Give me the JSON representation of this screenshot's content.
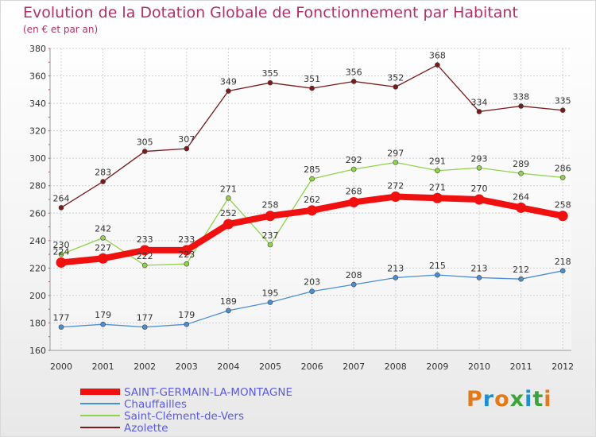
{
  "header": {
    "title": "Evolution de la Dotation Globale de Fonctionnement par Habitant",
    "subtitle": "(en € et par an)"
  },
  "logo": {
    "text": "Proxiti",
    "colors": [
      "#e07a1a",
      "#1f8fd0",
      "#e07a1a",
      "#3aa53a",
      "#1f8fd0",
      "#3aa53a",
      "#e07a1a"
    ]
  },
  "chart_data": {
    "type": "line",
    "x": [
      "2000",
      "2001",
      "2002",
      "2003",
      "2004",
      "2005",
      "2006",
      "2007",
      "2008",
      "2009",
      "2010",
      "2011",
      "2012"
    ],
    "ylim": [
      160,
      380
    ],
    "yticks": [
      160,
      180,
      200,
      220,
      240,
      260,
      280,
      300,
      320,
      340,
      360,
      380
    ],
    "grid": true,
    "legend_position": "bottom-left",
    "series": [
      {
        "name": "SAINT-GERMAIN-LA-MONTAGNE",
        "color": "#f01010",
        "highlight": true,
        "values": [
          224,
          227,
          233,
          233,
          252,
          258,
          262,
          268,
          272,
          271,
          270,
          264,
          258
        ]
      },
      {
        "name": "Chauffailles",
        "color": "#4a8ed4",
        "highlight": false,
        "values": [
          177,
          179,
          177,
          179,
          189,
          195,
          203,
          208,
          213,
          215,
          213,
          212,
          218
        ]
      },
      {
        "name": "Saint-Clément-de-Vers",
        "color": "#8fd44a",
        "highlight": false,
        "values": [
          230,
          242,
          222,
          223,
          271,
          237,
          285,
          292,
          297,
          291,
          293,
          289,
          286
        ]
      },
      {
        "name": "Azolette",
        "color": "#7a1a1a",
        "highlight": false,
        "values": [
          264,
          283,
          305,
          307,
          349,
          355,
          351,
          356,
          352,
          368,
          334,
          338,
          335
        ]
      }
    ]
  }
}
